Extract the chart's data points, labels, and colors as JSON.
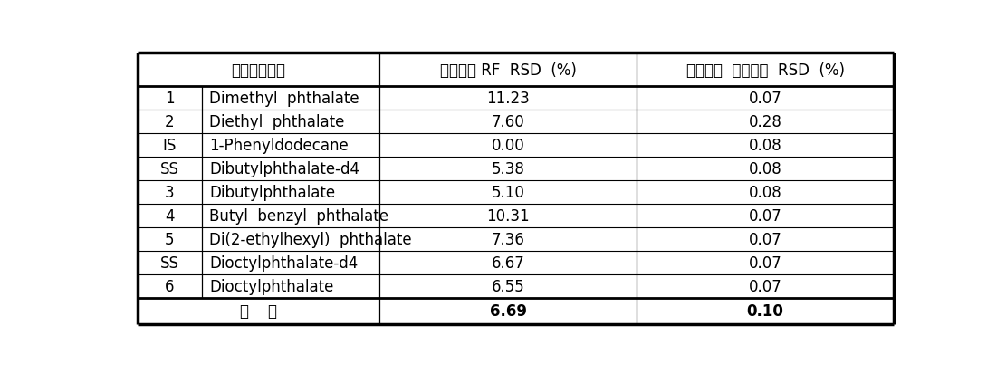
{
  "col_headers": [
    "프탈레이트류",
    "표준용액 RF  RSD  (%)",
    "표준용액  체류시간  RSD  (%)"
  ],
  "rows": [
    [
      "1",
      "Dimethyl  phthalate",
      "11.23",
      "0.07"
    ],
    [
      "2",
      "Diethyl  phthalate",
      "7.60",
      "0.28"
    ],
    [
      "IS",
      "1-Phenyldodecane",
      "0.00",
      "0.08"
    ],
    [
      "SS",
      "Dibutylphthalate-d4",
      "5.38",
      "0.08"
    ],
    [
      "3",
      "Dibutylphthalate",
      "5.10",
      "0.08"
    ],
    [
      "4",
      "Butyl  benzyl  phthalate",
      "10.31",
      "0.07"
    ],
    [
      "5",
      "Di(2-ethylhexyl)  phthalate",
      "7.36",
      "0.07"
    ],
    [
      "SS",
      "Dioctylphthalate-d4",
      "6.67",
      "0.07"
    ],
    [
      "6",
      "Dioctylphthalate",
      "6.55",
      "0.07"
    ]
  ],
  "footer_label": "평    균",
  "footer_rf": "6.69",
  "footer_rt": "0.10",
  "bg_color": "#ffffff",
  "text_color": "#000000"
}
